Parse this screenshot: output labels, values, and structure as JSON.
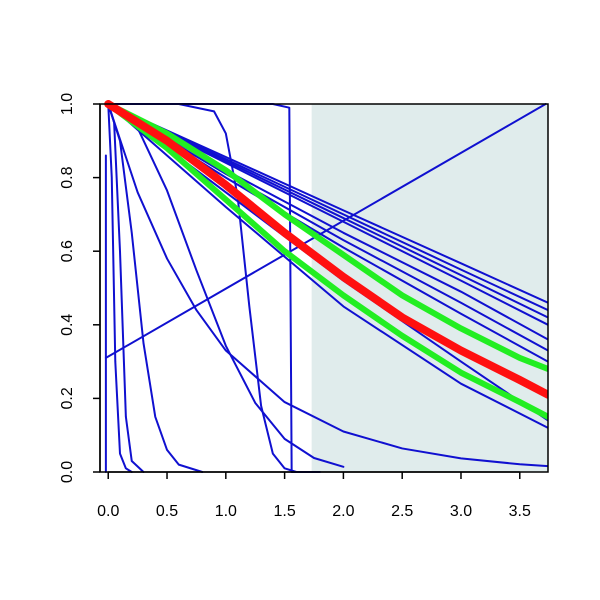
{
  "chart_data": {
    "type": "line",
    "xlim": [
      -0.07,
      3.74
    ],
    "ylim": [
      0,
      1
    ],
    "xticks": [
      {
        "value": 0,
        "label": "0.0"
      },
      0.5,
      {
        "value": 1,
        "label": "1.0"
      },
      1.5,
      {
        "value": 2,
        "label": "2.0"
      },
      2.5,
      {
        "value": 3,
        "label": "3.0"
      },
      3.5
    ],
    "yticks": [
      {
        "value": 0,
        "label": "0.0"
      },
      0.2,
      0.4,
      0.6,
      0.8,
      {
        "value": 1,
        "label": "1.0"
      }
    ],
    "shaded_region": {
      "x": [
        1.73,
        3.74
      ],
      "color": "#e0ecec"
    },
    "series": [
      {
        "color": "#1010d0",
        "line_width": 2,
        "x": [
          0,
          1,
          2,
          3,
          3.74
        ],
        "values": [
          1,
          0.856,
          0.711,
          0.567,
          0.46
        ]
      },
      {
        "color": "#1010d0",
        "line_width": 2,
        "x": [
          0,
          1,
          2,
          3,
          3.74
        ],
        "values": [
          1,
          0.85,
          0.7,
          0.55,
          0.44
        ]
      },
      {
        "color": "#1010d0",
        "line_width": 2,
        "x": [
          0,
          1,
          2,
          3,
          3.74
        ],
        "values": [
          1,
          0.845,
          0.69,
          0.535,
          0.42
        ]
      },
      {
        "color": "#1010d0",
        "line_width": 2,
        "x": [
          0,
          1,
          2,
          3,
          3.74
        ],
        "values": [
          1,
          0.84,
          0.68,
          0.52,
          0.4
        ]
      },
      {
        "color": "#1010d0",
        "line_width": 2,
        "x": [
          0,
          1,
          2,
          3,
          3.74
        ],
        "values": [
          1,
          0.82,
          0.65,
          0.49,
          0.36
        ]
      },
      {
        "color": "#1010d0",
        "line_width": 2,
        "x": [
          0,
          1,
          2,
          3,
          3.74
        ],
        "values": [
          1,
          0.81,
          0.63,
          0.46,
          0.33
        ]
      },
      {
        "color": "#1010d0",
        "line_width": 2,
        "x": [
          0,
          1,
          2,
          3,
          3.74
        ],
        "values": [
          1,
          0.8,
          0.61,
          0.43,
          0.3
        ]
      },
      {
        "color": "#1010d0",
        "line_width": 2,
        "x": [
          0,
          1,
          2,
          3,
          3.74
        ],
        "values": [
          1,
          0.76,
          0.52,
          0.3,
          0.14
        ]
      },
      {
        "color": "#1010d0",
        "line_width": 2,
        "x": [
          0,
          1,
          2,
          3,
          3.74
        ],
        "values": [
          1,
          0.72,
          0.45,
          0.24,
          0.12
        ]
      },
      {
        "color": "#1010d0",
        "line_width": 2,
        "x": [
          -0.02,
          3.72
        ],
        "values": [
          0.31,
          1
        ]
      },
      {
        "color": "#1010d0",
        "line_width": 2,
        "x": [
          0,
          0.25,
          0.5,
          0.75,
          1,
          1.5,
          2,
          2.5,
          3,
          3.5,
          3.74
        ],
        "values": [
          1,
          0.76,
          0.58,
          0.44,
          0.33,
          0.19,
          0.11,
          0.064,
          0.037,
          0.021,
          0.016
        ]
      },
      {
        "color": "#1010d0",
        "line_width": 2,
        "x": [
          0,
          0.25,
          0.5,
          0.75,
          1,
          1.25,
          1.5,
          1.75,
          2
        ],
        "values": [
          1,
          0.935,
          0.765,
          0.548,
          0.343,
          0.188,
          0.09,
          0.038,
          0.014
        ]
      },
      {
        "color": "#1010d0",
        "line_width": 2,
        "x": [
          0,
          0.1,
          0.2,
          0.3,
          0.4,
          0.5,
          0.6,
          0.8
        ],
        "values": [
          1,
          0.9,
          0.65,
          0.35,
          0.15,
          0.06,
          0.02,
          0
        ]
      },
      {
        "color": "#1010d0",
        "line_width": 2,
        "x": [
          0,
          0.05,
          0.1,
          0.15,
          0.2,
          0.3
        ],
        "values": [
          1,
          0.95,
          0.6,
          0.15,
          0.03,
          0
        ]
      },
      {
        "color": "#1010d0",
        "line_width": 2,
        "x": [
          0,
          0.03,
          0.06,
          0.1,
          0.15,
          0.2
        ],
        "values": [
          1,
          0.8,
          0.3,
          0.05,
          0.01,
          0
        ]
      },
      {
        "color": "#1010d0",
        "line_width": 2,
        "x": [
          -0.02,
          -0.02
        ],
        "values": [
          0.86,
          0
        ]
      },
      {
        "color": "#1010d0",
        "line_width": 2,
        "x": [
          0,
          0.6,
          0.9,
          1,
          1.1,
          1.2,
          1.3,
          1.4,
          1.5,
          1.6
        ],
        "values": [
          1,
          1,
          0.98,
          0.92,
          0.75,
          0.45,
          0.18,
          0.05,
          0.01,
          0
        ]
      },
      {
        "color": "#1010d0",
        "line_width": 2,
        "x": [
          0,
          0.6,
          1.4,
          1.54,
          1.55,
          1.56,
          1.8
        ],
        "values": [
          1,
          1,
          1,
          0.99,
          0.5,
          0,
          0
        ]
      },
      {
        "color": "#22ee22",
        "line_width": 6,
        "x": [
          0,
          0.5,
          1,
          1.5,
          2,
          2.5,
          3,
          3.5,
          3.74
        ],
        "values": [
          1,
          0.92,
          0.82,
          0.7,
          0.59,
          0.48,
          0.39,
          0.31,
          0.28
        ]
      },
      {
        "color": "#22ee22",
        "line_width": 6,
        "x": [
          0,
          0.5,
          1,
          1.5,
          2,
          2.5,
          3,
          3.5,
          3.74
        ],
        "values": [
          1,
          0.88,
          0.74,
          0.6,
          0.48,
          0.37,
          0.27,
          0.19,
          0.15
        ]
      },
      {
        "color": "#ff1010",
        "line_width": 8,
        "x": [
          0,
          0.5,
          1,
          1.5,
          2,
          2.5,
          3,
          3.5,
          3.74
        ],
        "values": [
          1,
          0.9,
          0.78,
          0.65,
          0.53,
          0.42,
          0.33,
          0.25,
          0.21
        ]
      }
    ]
  }
}
